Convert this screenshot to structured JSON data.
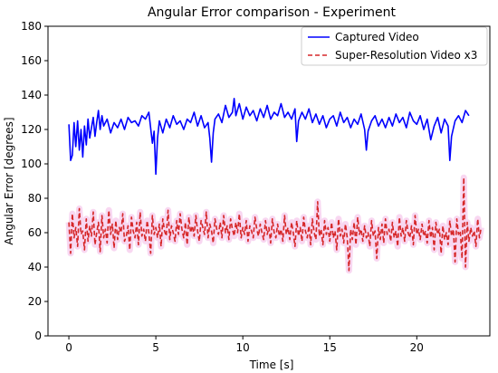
{
  "chart_data": {
    "type": "line",
    "title": "Angular Error comparison - Experiment",
    "xlabel": "Time [s]",
    "ylabel": "Angular Error [degrees]",
    "xlim": [
      -1.2,
      24.2
    ],
    "ylim": [
      0,
      180
    ],
    "xticks": [
      0,
      5,
      10,
      15,
      20
    ],
    "yticks": [
      0,
      20,
      40,
      60,
      80,
      100,
      120,
      140,
      160,
      180
    ],
    "grid": false,
    "legend_position": "top-right",
    "series": [
      {
        "name": "Captured Video",
        "color": "#0000ff",
        "style": "solid",
        "x": [
          0.0,
          0.1,
          0.2,
          0.3,
          0.4,
          0.5,
          0.6,
          0.7,
          0.8,
          0.9,
          1.0,
          1.1,
          1.2,
          1.3,
          1.4,
          1.5,
          1.6,
          1.7,
          1.8,
          1.9,
          2.0,
          2.2,
          2.4,
          2.6,
          2.8,
          3.0,
          3.2,
          3.4,
          3.6,
          3.8,
          4.0,
          4.2,
          4.4,
          4.6,
          4.8,
          4.9,
          5.0,
          5.1,
          5.2,
          5.4,
          5.6,
          5.8,
          6.0,
          6.2,
          6.4,
          6.6,
          6.8,
          7.0,
          7.2,
          7.4,
          7.6,
          7.8,
          8.0,
          8.1,
          8.2,
          8.3,
          8.4,
          8.6,
          8.8,
          9.0,
          9.2,
          9.4,
          9.5,
          9.6,
          9.8,
          10.0,
          10.2,
          10.4,
          10.6,
          10.8,
          11.0,
          11.2,
          11.4,
          11.6,
          11.8,
          12.0,
          12.2,
          12.4,
          12.6,
          12.8,
          13.0,
          13.1,
          13.2,
          13.4,
          13.6,
          13.8,
          14.0,
          14.2,
          14.4,
          14.6,
          14.8,
          15.0,
          15.2,
          15.4,
          15.6,
          15.8,
          16.0,
          16.2,
          16.4,
          16.6,
          16.8,
          17.0,
          17.1,
          17.2,
          17.4,
          17.6,
          17.8,
          18.0,
          18.2,
          18.4,
          18.6,
          18.8,
          19.0,
          19.2,
          19.4,
          19.6,
          19.8,
          20.0,
          20.2,
          20.4,
          20.6,
          20.8,
          21.0,
          21.2,
          21.4,
          21.6,
          21.8,
          21.9,
          22.0,
          22.2,
          22.4,
          22.6,
          22.8,
          23.0
        ],
        "y": [
          123,
          102,
          105,
          124,
          110,
          125,
          108,
          120,
          104,
          122,
          111,
          126,
          115,
          121,
          127,
          116,
          124,
          131,
          120,
          128,
          122,
          126,
          118,
          124,
          121,
          126,
          120,
          127,
          124,
          125,
          122,
          128,
          126,
          130,
          112,
          119,
          94,
          115,
          125,
          118,
          126,
          121,
          128,
          123,
          125,
          120,
          126,
          124,
          130,
          122,
          128,
          121,
          124,
          115,
          101,
          118,
          126,
          129,
          124,
          134,
          127,
          130,
          138,
          128,
          135,
          126,
          133,
          128,
          131,
          125,
          132,
          127,
          134,
          126,
          130,
          128,
          135,
          127,
          130,
          126,
          132,
          113,
          125,
          130,
          126,
          132,
          124,
          129,
          123,
          128,
          121,
          126,
          128,
          122,
          130,
          124,
          127,
          121,
          126,
          123,
          129,
          120,
          108,
          119,
          125,
          128,
          122,
          126,
          121,
          127,
          122,
          129,
          124,
          127,
          121,
          130,
          125,
          123,
          128,
          120,
          126,
          114,
          122,
          127,
          118,
          126,
          122,
          102,
          116,
          125,
          128,
          124,
          131,
          128
        ]
      },
      {
        "name": "Super-Resolution Video x3",
        "color": "#d62728",
        "style": "dashed",
        "x_start": 0.0,
        "x_step": 0.1,
        "y": [
          66,
          48,
          71,
          57,
          63,
          52,
          74,
          59,
          61,
          50,
          68,
          55,
          64,
          58,
          72,
          53,
          60,
          66,
          49,
          70,
          57,
          62,
          54,
          73,
          59,
          65,
          51,
          67,
          56,
          63,
          60,
          71,
          55,
          58,
          64,
          50,
          69,
          61,
          57,
          66,
          53,
          72,
          58,
          62,
          55,
          67,
          60,
          48,
          70,
          59,
          63,
          57,
          65,
          52,
          68,
          61,
          58,
          73,
          56,
          64,
          60,
          55,
          67,
          59,
          71,
          62,
          57,
          66,
          53,
          69,
          60,
          64,
          58,
          70,
          61,
          55,
          67,
          63,
          59,
          72,
          57,
          65,
          61,
          54,
          68,
          62,
          59,
          66,
          57,
          70,
          60,
          64,
          56,
          68,
          62,
          58,
          66,
          60,
          71,
          57,
          63,
          59,
          67,
          55,
          64,
          61,
          57,
          69,
          62,
          58,
          65,
          60,
          56,
          67,
          59,
          63,
          54,
          68,
          60,
          57,
          65,
          58,
          62,
          55,
          70,
          59,
          63,
          56,
          66,
          60,
          52,
          67,
          58,
          63,
          55,
          69,
          61,
          57,
          64,
          53,
          68,
          60,
          56,
          78,
          58,
          62,
          53,
          67,
          59,
          63,
          55,
          66,
          57,
          61,
          50,
          68,
          58,
          62,
          54,
          65,
          57,
          38,
          62,
          56,
          66,
          53,
          69,
          59,
          62,
          55,
          64,
          57,
          60,
          52,
          67,
          58,
          61,
          45,
          63,
          56,
          65,
          54,
          68,
          59,
          62,
          55,
          66,
          57,
          61,
          52,
          69,
          58,
          63,
          55,
          67,
          60,
          57,
          64,
          53,
          70,
          59,
          62,
          56,
          65,
          58,
          61,
          54,
          67,
          57,
          63,
          50,
          66,
          59,
          62,
          48,
          64,
          56,
          60,
          53,
          67,
          58,
          62,
          43,
          68,
          59,
          61,
          45,
          92,
          40,
          66,
          55,
          63,
          58,
          61,
          52,
          68,
          57,
          63
        ]
      }
    ]
  }
}
